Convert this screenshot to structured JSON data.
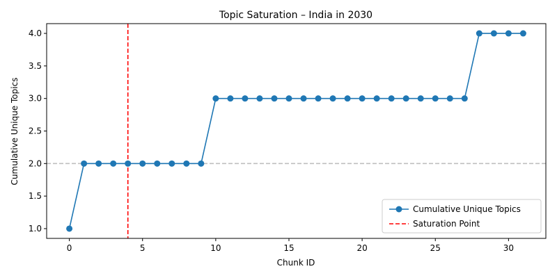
{
  "chart_data": {
    "type": "line",
    "title": "Topic Saturation – India in 2030",
    "xlabel": "Chunk ID",
    "ylabel": "Cumulative Unique Topics",
    "xlim": [
      -1.55,
      32.55
    ],
    "ylim": [
      0.85,
      4.15
    ],
    "x_ticks": [
      0,
      5,
      10,
      15,
      20,
      25,
      30
    ],
    "x_tick_labels": [
      "0",
      "5",
      "10",
      "15",
      "20",
      "25",
      "30"
    ],
    "y_ticks": [
      1.0,
      1.5,
      2.0,
      2.5,
      3.0,
      3.5,
      4.0
    ],
    "y_tick_labels": [
      "1.0",
      "1.5",
      "2.0",
      "2.5",
      "3.0",
      "3.5",
      "4.0"
    ],
    "grid": false,
    "legend_position": "lower-right",
    "series": [
      {
        "name": "Cumulative Unique Topics",
        "color": "#1f77b4",
        "marker": "circle",
        "x": [
          0,
          1,
          2,
          3,
          4,
          5,
          6,
          7,
          8,
          9,
          10,
          11,
          12,
          13,
          14,
          15,
          16,
          17,
          18,
          19,
          20,
          21,
          22,
          23,
          24,
          25,
          26,
          27,
          28,
          29,
          30,
          31
        ],
        "y": [
          1,
          2,
          2,
          2,
          2,
          2,
          2,
          2,
          2,
          2,
          3,
          3,
          3,
          3,
          3,
          3,
          3,
          3,
          3,
          3,
          3,
          3,
          3,
          3,
          3,
          3,
          3,
          3,
          4,
          4,
          4,
          4
        ]
      }
    ],
    "reference_lines": [
      {
        "name": "Saturation Point",
        "orientation": "vertical",
        "value": 4,
        "color": "#ff0000",
        "style": "dashed",
        "in_legend": true
      },
      {
        "name": "",
        "orientation": "horizontal",
        "value": 2,
        "color": "#bfbfbf",
        "style": "dashed",
        "in_legend": false
      }
    ]
  }
}
